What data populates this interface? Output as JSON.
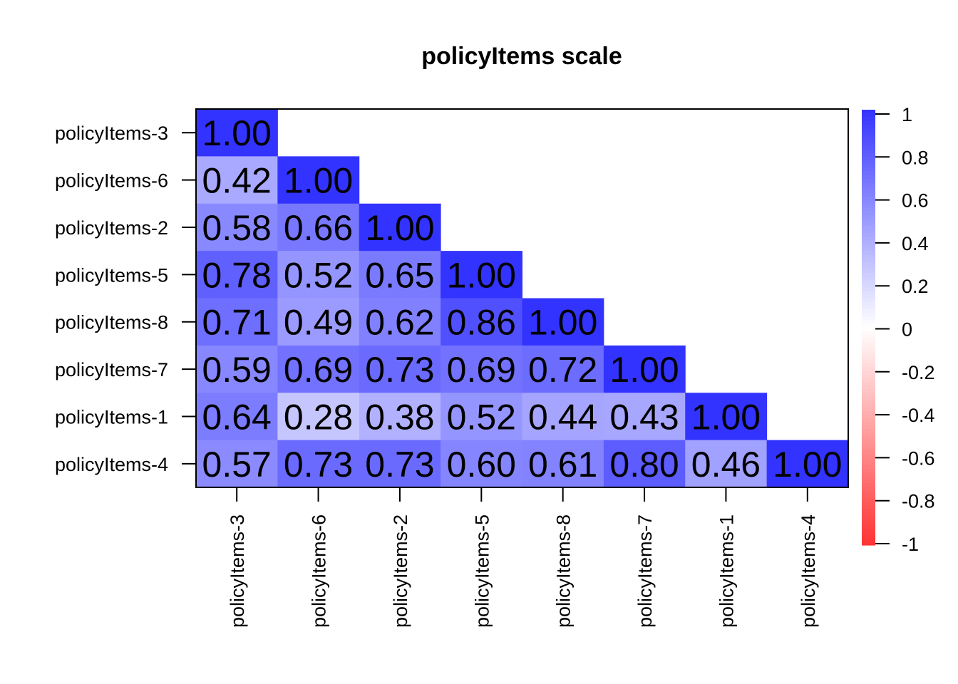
{
  "chart_data": {
    "type": "heatmap",
    "title": "policyItems scale",
    "variables": [
      "policyItems-3",
      "policyItems-6",
      "policyItems-2",
      "policyItems-5",
      "policyItems-8",
      "policyItems-7",
      "policyItems-1",
      "policyItems-4"
    ],
    "matrix": [
      [
        1.0,
        null,
        null,
        null,
        null,
        null,
        null,
        null
      ],
      [
        0.42,
        1.0,
        null,
        null,
        null,
        null,
        null,
        null
      ],
      [
        0.58,
        0.66,
        1.0,
        null,
        null,
        null,
        null,
        null
      ],
      [
        0.78,
        0.52,
        0.65,
        1.0,
        null,
        null,
        null,
        null
      ],
      [
        0.71,
        0.49,
        0.62,
        0.86,
        1.0,
        null,
        null,
        null
      ],
      [
        0.59,
        0.69,
        0.73,
        0.69,
        0.72,
        1.0,
        null,
        null
      ],
      [
        0.64,
        0.28,
        0.38,
        0.52,
        0.44,
        0.43,
        1.0,
        null
      ],
      [
        0.57,
        0.73,
        0.73,
        0.6,
        0.61,
        0.8,
        0.46,
        1.0
      ]
    ],
    "display_values": [
      [
        "1.00"
      ],
      [
        "0.42",
        "1.00"
      ],
      [
        "0.58",
        "0.66",
        "1.00"
      ],
      [
        "0.78",
        "0.52",
        "0.65",
        "1.00"
      ],
      [
        "0.71",
        "0.49",
        "0.62",
        "0.86",
        "1.00"
      ],
      [
        "0.59",
        "0.69",
        "0.73",
        "0.69",
        "0.72",
        "1.00"
      ],
      [
        "0.64",
        "0.28",
        "0.38",
        "0.52",
        "0.44",
        "0.43",
        "1.00"
      ],
      [
        "0.57",
        "0.73",
        "0.73",
        "0.60",
        "0.61",
        "0.80",
        "0.46",
        "1.00"
      ]
    ],
    "colorbar": {
      "range": [
        -1,
        1
      ],
      "ticks": [
        "1",
        "0.8",
        "0.6",
        "0.4",
        "0.2",
        "0",
        "-0.2",
        "-0.4",
        "-0.6",
        "-0.8",
        "-1"
      ],
      "color_high": "#3333ff",
      "color_mid": "#ffffff",
      "color_low": "#ff3333"
    },
    "triangle": "lower"
  }
}
